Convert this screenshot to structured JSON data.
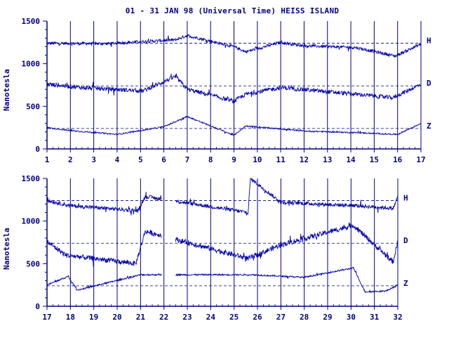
{
  "title": "01 - 31 JAN 98 (Universal Time) HEISS ISLAND",
  "colors": {
    "trace": "#0000aa",
    "axis": "#000080",
    "background": "#ffffff"
  },
  "chart_data": [
    {
      "type": "line",
      "panel": "top",
      "title": "01 - 31 JAN 98 (Universal Time) HEISS ISLAND",
      "ylabel": "Nanotesla",
      "xlabel": "",
      "ylim": [
        0,
        1500
      ],
      "yticks": [
        "0",
        "500",
        "1000",
        "1500"
      ],
      "xticks": [
        "1",
        "2",
        "3",
        "4",
        "5",
        "6",
        "7",
        "8",
        "9",
        "10",
        "11",
        "12",
        "13",
        "14",
        "15",
        "16",
        "17"
      ],
      "xlim": [
        1,
        17
      ],
      "grid": "vertical day lines",
      "series": [
        {
          "name": "H",
          "baseline": 1240,
          "noise": 18,
          "values": [
            [
              1,
              1240
            ],
            [
              3.5,
              1235
            ],
            [
              6.5,
              1280
            ],
            [
              7,
              1330
            ],
            [
              9,
              1200
            ],
            [
              9.5,
              1140
            ],
            [
              11,
              1250
            ],
            [
              12,
              1210
            ],
            [
              14.2,
              1190
            ],
            [
              15.9,
              1090
            ],
            [
              17,
              1230
            ]
          ]
        },
        {
          "name": "D",
          "baseline": 740,
          "noise": 25,
          "values": [
            [
              1,
              760
            ],
            [
              2.5,
              720
            ],
            [
              5.1,
              680
            ],
            [
              6.5,
              850
            ],
            [
              7,
              700
            ],
            [
              9,
              560
            ],
            [
              9.5,
              640
            ],
            [
              11,
              720
            ],
            [
              14.3,
              640
            ],
            [
              15.8,
              600
            ],
            [
              17,
              760
            ]
          ]
        },
        {
          "name": "Z",
          "baseline": 240,
          "noise": 8,
          "values": [
            [
              1,
              250
            ],
            [
              2,
              215
            ],
            [
              4,
              170
            ],
            [
              6,
              260
            ],
            [
              7,
              380
            ],
            [
              9,
              160
            ],
            [
              9.5,
              270
            ],
            [
              12,
              210
            ],
            [
              14.3,
              190
            ],
            [
              16,
              170
            ],
            [
              17,
              300
            ]
          ]
        }
      ]
    },
    {
      "type": "line",
      "panel": "bottom",
      "ylabel": "Nanotesla",
      "xlabel": "",
      "ylim": [
        0,
        1500
      ],
      "yticks": [
        "0",
        "500",
        "1000",
        "1500"
      ],
      "xticks": [
        "17",
        "18",
        "19",
        "20",
        "21",
        "22",
        "23",
        "24",
        "25",
        "26",
        "27",
        "28",
        "29",
        "30",
        "31",
        "32"
      ],
      "xlim": [
        17,
        32
      ],
      "grid": "vertical day lines",
      "data_gap": [
        21.9,
        22.5
      ],
      "series": [
        {
          "name": "H",
          "baseline": 1240,
          "noise": 22,
          "values": [
            [
              17,
              1240
            ],
            [
              18,
              1180
            ],
            [
              20.9,
              1120
            ],
            [
              21.2,
              1290
            ],
            [
              25.6,
              1100
            ],
            [
              25.7,
              1500
            ],
            [
              27,
              1220
            ],
            [
              30.2,
              1180
            ],
            [
              31.8,
              1150
            ],
            [
              32,
              1280
            ]
          ]
        },
        {
          "name": "D",
          "baseline": 740,
          "noise": 30,
          "values": [
            [
              17,
              760
            ],
            [
              17.8,
              600
            ],
            [
              20.8,
              500
            ],
            [
              21.2,
              880
            ],
            [
              25.6,
              560
            ],
            [
              27,
              720
            ],
            [
              30.1,
              950
            ],
            [
              31.8,
              520
            ],
            [
              32,
              760
            ]
          ]
        },
        {
          "name": "Z",
          "baseline": 240,
          "noise": 9,
          "values": [
            [
              17,
              250
            ],
            [
              17.9,
              350
            ],
            [
              18.3,
              190
            ],
            [
              21,
              370
            ],
            [
              25.7,
              370
            ],
            [
              28,
              340
            ],
            [
              30.1,
              450
            ],
            [
              30.6,
              170
            ],
            [
              31.5,
              180
            ],
            [
              32,
              250
            ]
          ]
        }
      ]
    }
  ]
}
